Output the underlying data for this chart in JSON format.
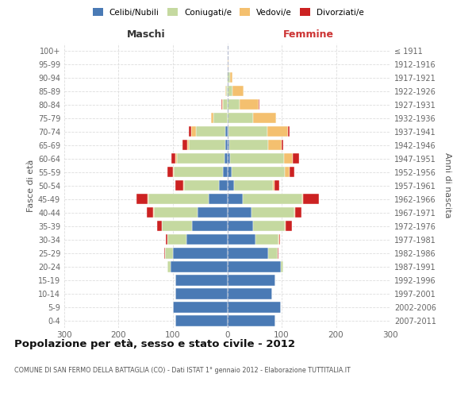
{
  "age_groups": [
    "0-4",
    "5-9",
    "10-14",
    "15-19",
    "20-24",
    "25-29",
    "30-34",
    "35-39",
    "40-44",
    "45-49",
    "50-54",
    "55-59",
    "60-64",
    "65-69",
    "70-74",
    "75-79",
    "80-84",
    "85-89",
    "90-94",
    "95-99",
    "100+"
  ],
  "birth_years": [
    "2007-2011",
    "2002-2006",
    "1997-2001",
    "1992-1996",
    "1987-1991",
    "1982-1986",
    "1977-1981",
    "1972-1976",
    "1967-1971",
    "1962-1966",
    "1957-1961",
    "1952-1956",
    "1947-1951",
    "1942-1946",
    "1937-1941",
    "1932-1936",
    "1927-1931",
    "1922-1926",
    "1917-1921",
    "1912-1916",
    "≤ 1911"
  ],
  "maschi_celibi": [
    95,
    100,
    95,
    95,
    105,
    100,
    75,
    65,
    55,
    35,
    15,
    8,
    5,
    3,
    3,
    0,
    0,
    0,
    0,
    0,
    0
  ],
  "maschi_coniugati": [
    0,
    0,
    0,
    0,
    5,
    15,
    35,
    55,
    80,
    110,
    65,
    90,
    88,
    68,
    55,
    25,
    8,
    2,
    1,
    0,
    0
  ],
  "maschi_vedovi": [
    0,
    0,
    0,
    0,
    0,
    0,
    0,
    1,
    1,
    2,
    1,
    2,
    2,
    3,
    8,
    5,
    2,
    1,
    0,
    0,
    0
  ],
  "maschi_divorziati": [
    0,
    0,
    0,
    0,
    0,
    1,
    3,
    8,
    12,
    20,
    15,
    10,
    8,
    8,
    5,
    0,
    1,
    0,
    0,
    0,
    0
  ],
  "femmine_nubili": [
    88,
    98,
    82,
    88,
    98,
    75,
    52,
    48,
    45,
    28,
    12,
    8,
    5,
    3,
    2,
    0,
    0,
    0,
    0,
    0,
    0
  ],
  "femmine_coniugate": [
    0,
    0,
    0,
    0,
    5,
    18,
    42,
    58,
    78,
    110,
    72,
    98,
    100,
    72,
    72,
    48,
    22,
    10,
    5,
    1,
    0
  ],
  "femmine_vedove": [
    0,
    0,
    0,
    0,
    0,
    0,
    1,
    1,
    2,
    2,
    3,
    8,
    15,
    25,
    38,
    42,
    35,
    20,
    5,
    1,
    0
  ],
  "femmine_divorziate": [
    0,
    0,
    0,
    0,
    0,
    1,
    2,
    12,
    12,
    28,
    8,
    10,
    12,
    3,
    3,
    0,
    2,
    0,
    0,
    0,
    0
  ],
  "colors_celibi": "#4a7ab5",
  "colors_coniugati": "#c5d9a0",
  "colors_vedovi": "#f4c06f",
  "colors_divorziati": "#cc2222",
  "title": "Popolazione per età, sesso e stato civile - 2012",
  "subtitle": "COMUNE DI SAN FERMO DELLA BATTAGLIA (CO) - Dati ISTAT 1° gennaio 2012 - Elaborazione TUTTITALIA.IT",
  "label_maschi": "Maschi",
  "label_femmine": "Femmine",
  "ylabel_left": "Fasce di età",
  "ylabel_right": "Anni di nascita",
  "xlim": 300,
  "legend_labels": [
    "Celibi/Nubili",
    "Coniugati/e",
    "Vedovi/e",
    "Divorziati/e"
  ]
}
